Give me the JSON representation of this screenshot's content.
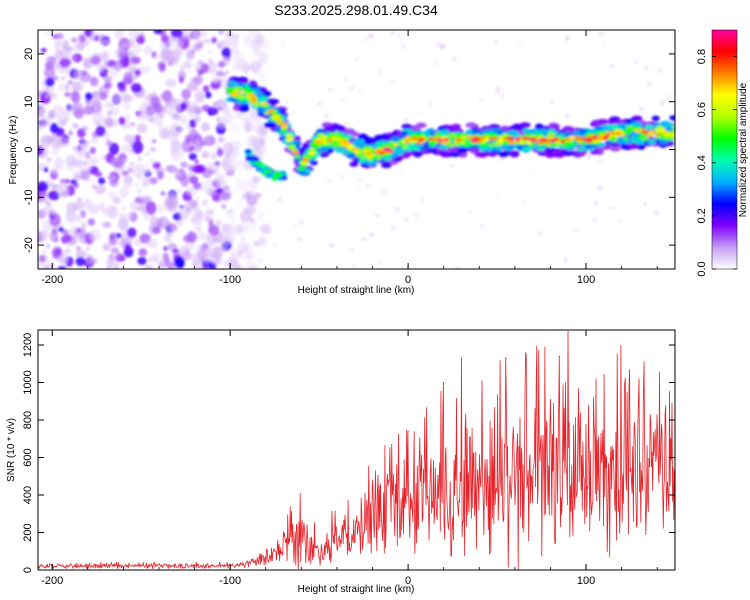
{
  "title": "S233.2025.298.01.49.C34",
  "chart_data": [
    {
      "type": "heatmap",
      "name": "spectrogram",
      "xlabel": "Height of straight line (km)",
      "ylabel": "Frequency (Hz)",
      "xlim": [
        -208,
        150
      ],
      "ylim": [
        -25,
        25
      ],
      "x_ticks": [
        -200,
        -100,
        0,
        100
      ],
      "x_tick_labels": [
        "-200",
        "-100",
        "0",
        "100"
      ],
      "y_ticks": [
        -20,
        -10,
        0,
        10,
        20
      ],
      "y_tick_labels": [
        "-20",
        "-10",
        "0",
        "10",
        "20"
      ],
      "ridge": {
        "x": [
          -100,
          -90,
          -80,
          -70,
          -65,
          -60,
          -55,
          -50,
          -40,
          -30,
          -20,
          -10,
          0,
          20,
          40,
          60,
          80,
          100,
          120,
          140,
          150
        ],
        "freq": [
          12,
          11.5,
          9,
          5,
          1,
          -4,
          -1,
          2,
          2,
          0,
          -1,
          0,
          2,
          2,
          2,
          2,
          2,
          2,
          3.5,
          3.5,
          3.5
        ]
      },
      "branch": {
        "x": [
          -90,
          -85,
          -80,
          -75,
          -70
        ],
        "freq": [
          -1,
          -3,
          -4.5,
          -5.5,
          -5.5
        ]
      },
      "noise_region_xlim": [
        -208,
        -90
      ],
      "colorbar": {
        "label": "Normalized spectral amplitude",
        "ticks": [
          0.0,
          0.2,
          0.4,
          0.6,
          0.8
        ],
        "tick_labels": [
          "0.0",
          "0.2",
          "0.4",
          "0.6",
          "0.8"
        ],
        "range": [
          0,
          0.9
        ],
        "colors": [
          "#ffffff",
          "#c59cf4",
          "#8000ff",
          "#0000ff",
          "#00b0ff",
          "#00ffb0",
          "#00ff00",
          "#b0ff00",
          "#ffff00",
          "#ff8000",
          "#ff0000",
          "#ff00a0"
        ]
      }
    },
    {
      "type": "line",
      "name": "snr",
      "xlabel": "Height of straight line (km)",
      "ylabel": "SNR (10 * v/v)",
      "xlim": [
        -208,
        150
      ],
      "ylim": [
        0,
        1280
      ],
      "x_ticks": [
        -200,
        -100,
        0,
        100
      ],
      "x_tick_labels": [
        "-200",
        "-100",
        "0",
        "100"
      ],
      "y_ticks": [
        0,
        200,
        400,
        600,
        800,
        1000,
        1200
      ],
      "y_tick_labels": [
        "0",
        "200",
        "400",
        "600",
        "800",
        "1000",
        "1200"
      ],
      "envelope": {
        "x": [
          -208,
          -100,
          -85,
          -75,
          -70,
          -65,
          -60,
          -55,
          -50,
          -45,
          -40,
          -35,
          -30,
          -25,
          -20,
          -15,
          -10,
          -5,
          0,
          5,
          10,
          15,
          20,
          25,
          30,
          40,
          50,
          60,
          70,
          80,
          90,
          100,
          110,
          120,
          130,
          140,
          150
        ],
        "base": [
          20,
          22,
          40,
          80,
          110,
          140,
          150,
          130,
          100,
          130,
          160,
          170,
          170,
          250,
          290,
          330,
          320,
          340,
          380,
          380,
          380,
          400,
          420,
          440,
          460,
          480,
          480,
          480,
          500,
          500,
          500,
          500,
          520,
          520,
          520,
          530,
          540
        ],
        "spread": [
          15,
          15,
          30,
          60,
          100,
          170,
          230,
          140,
          80,
          110,
          150,
          150,
          130,
          220,
          230,
          300,
          280,
          300,
          330,
          340,
          350,
          360,
          400,
          450,
          480,
          500,
          520,
          520,
          520,
          520,
          540,
          520,
          520,
          520,
          480,
          440,
          420
        ]
      },
      "peaks": [
        {
          "x": 0,
          "y": 740
        },
        {
          "x": 20,
          "y": 1000
        },
        {
          "x": 30,
          "y": 1130
        },
        {
          "x": 55,
          "y": 1130
        },
        {
          "x": 85,
          "y": 1140
        },
        {
          "x": 90,
          "y": 1270
        },
        {
          "x": 110,
          "y": 1040
        },
        {
          "x": 122,
          "y": 1020
        },
        {
          "x": 147,
          "y": 950
        }
      ],
      "color": "#e8232a"
    }
  ]
}
